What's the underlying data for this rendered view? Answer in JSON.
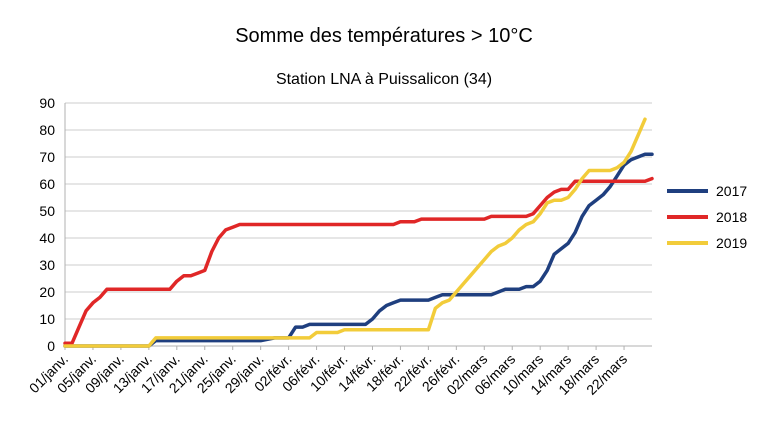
{
  "chart_data": {
    "type": "line",
    "title": "Somme des températures > 10°C",
    "subtitle": "Station LNA à Puissalicon (34)",
    "xlabel": "",
    "ylabel": "",
    "ylim": [
      0,
      90
    ],
    "yticks": [
      0,
      10,
      20,
      30,
      40,
      50,
      60,
      70,
      80,
      90
    ],
    "grid": "horizontal",
    "legend_position": "right",
    "x_tick_labels": [
      "01/janv.",
      "05/janv.",
      "09/janv.",
      "13/janv.",
      "17/janv.",
      "21/janv.",
      "25/janv.",
      "29/janv.",
      "02/févr.",
      "06/févr.",
      "10/févr.",
      "14/févr.",
      "18/févr.",
      "22/févr.",
      "26/févr.",
      "02/mars",
      "06/mars",
      "10/mars",
      "14/mars",
      "18/mars",
      "22/mars"
    ],
    "x_tick_day_index": [
      1,
      5,
      9,
      13,
      17,
      21,
      25,
      29,
      33,
      37,
      41,
      45,
      49,
      53,
      57,
      61,
      65,
      69,
      73,
      77,
      81
    ],
    "x_range_days": [
      1,
      85
    ],
    "series": [
      {
        "name": "2017",
        "color": "#1f3f7f",
        "points": [
          [
            1,
            0
          ],
          [
            13,
            0
          ],
          [
            14,
            2
          ],
          [
            29,
            2
          ],
          [
            31,
            3
          ],
          [
            33,
            3
          ],
          [
            34,
            7
          ],
          [
            35,
            7
          ],
          [
            36,
            8
          ],
          [
            44,
            8
          ],
          [
            45,
            10
          ],
          [
            46,
            13
          ],
          [
            47,
            15
          ],
          [
            48,
            16
          ],
          [
            49,
            17
          ],
          [
            53,
            17
          ],
          [
            54,
            18
          ],
          [
            55,
            19
          ],
          [
            62,
            19
          ],
          [
            63,
            20
          ],
          [
            64,
            21
          ],
          [
            66,
            21
          ],
          [
            67,
            22
          ],
          [
            68,
            22
          ],
          [
            69,
            24
          ],
          [
            70,
            28
          ],
          [
            71,
            34
          ],
          [
            72,
            36
          ],
          [
            73,
            38
          ],
          [
            74,
            42
          ],
          [
            75,
            48
          ],
          [
            76,
            52
          ],
          [
            77,
            54
          ],
          [
            78,
            56
          ],
          [
            79,
            59
          ],
          [
            80,
            63
          ],
          [
            81,
            67
          ],
          [
            82,
            69
          ],
          [
            83,
            70
          ],
          [
            84,
            71
          ],
          [
            85,
            71
          ]
        ]
      },
      {
        "name": "2018",
        "color": "#e02727",
        "points": [
          [
            1,
            1
          ],
          [
            2,
            1
          ],
          [
            3,
            7
          ],
          [
            4,
            13
          ],
          [
            5,
            16
          ],
          [
            6,
            18
          ],
          [
            7,
            21
          ],
          [
            15,
            21
          ],
          [
            16,
            21
          ],
          [
            17,
            24
          ],
          [
            18,
            26
          ],
          [
            19,
            26
          ],
          [
            20,
            27
          ],
          [
            21,
            28
          ],
          [
            22,
            35
          ],
          [
            23,
            40
          ],
          [
            24,
            43
          ],
          [
            25,
            44
          ],
          [
            26,
            45
          ],
          [
            48,
            45
          ],
          [
            49,
            46
          ],
          [
            51,
            46
          ],
          [
            52,
            47
          ],
          [
            61,
            47
          ],
          [
            62,
            48
          ],
          [
            67,
            48
          ],
          [
            68,
            49
          ],
          [
            69,
            52
          ],
          [
            70,
            55
          ],
          [
            71,
            57
          ],
          [
            72,
            58
          ],
          [
            73,
            58
          ],
          [
            74,
            61
          ],
          [
            84,
            61
          ],
          [
            85,
            62
          ]
        ]
      },
      {
        "name": "2019",
        "color": "#f2cc3a",
        "points": [
          [
            1,
            0
          ],
          [
            13,
            0
          ],
          [
            14,
            3
          ],
          [
            34,
            3
          ],
          [
            35,
            3
          ],
          [
            36,
            3
          ],
          [
            37,
            5
          ],
          [
            40,
            5
          ],
          [
            41,
            6
          ],
          [
            52,
            6
          ],
          [
            53,
            6
          ],
          [
            54,
            14
          ],
          [
            55,
            16
          ],
          [
            56,
            17
          ],
          [
            57,
            20
          ],
          [
            58,
            23
          ],
          [
            59,
            26
          ],
          [
            60,
            29
          ],
          [
            61,
            32
          ],
          [
            62,
            35
          ],
          [
            63,
            37
          ],
          [
            64,
            38
          ],
          [
            65,
            40
          ],
          [
            66,
            43
          ],
          [
            67,
            45
          ],
          [
            68,
            46
          ],
          [
            69,
            49
          ],
          [
            70,
            53
          ],
          [
            71,
            54
          ],
          [
            72,
            54
          ],
          [
            73,
            55
          ],
          [
            74,
            58
          ],
          [
            75,
            62
          ],
          [
            76,
            65
          ],
          [
            79,
            65
          ],
          [
            80,
            66
          ],
          [
            81,
            68
          ],
          [
            82,
            72
          ],
          [
            83,
            78
          ],
          [
            84,
            84
          ]
        ]
      }
    ]
  }
}
